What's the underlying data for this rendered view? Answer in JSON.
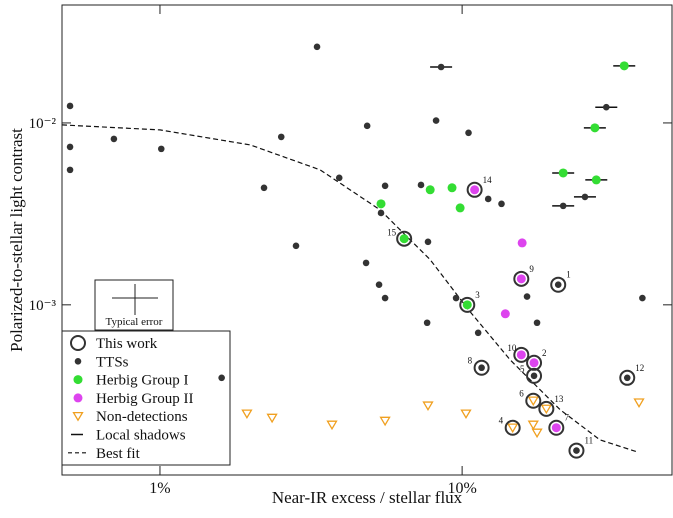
{
  "chart_data": {
    "type": "scatter",
    "xlabel": "Near-IR excess / stellar flux",
    "ylabel": "Polarized-to-stellar light contrast",
    "log_x": true,
    "log_y": true,
    "xlim": [
      0.474,
      49.5
    ],
    "ylim": [
      0.000116,
      0.0445
    ],
    "xticks": [
      {
        "value": 1,
        "label": "1%"
      },
      {
        "value": 10,
        "label": "10%"
      }
    ],
    "yticks": [
      {
        "value": 0.001,
        "label": "10⁻³"
      },
      {
        "value": 0.01,
        "label": "10⁻²"
      }
    ],
    "legend": "lower left",
    "annotation": "Typical error",
    "series": [
      {
        "name": "This work",
        "color": "#333333",
        "marker": "circle",
        "labels": [
          "1",
          "2",
          "3",
          "4",
          "5",
          "6",
          "7",
          "8",
          "9",
          "10",
          "11",
          "12",
          "13",
          "14",
          "15"
        ],
        "x": [
          20.8,
          17.3,
          10.4,
          14.7,
          17.3,
          17.2,
          20.5,
          11.6,
          15.7,
          15.7,
          23.9,
          35.2,
          19.0,
          11.0,
          6.43
        ],
        "y": [
          0.00129,
          0.00048,
          0.001,
          0.000211,
          0.000407,
          0.000297,
          0.000211,
          0.000451,
          0.00139,
          0.000531,
          0.000158,
          0.000397,
          0.000268,
          0.00429,
          0.00231
        ]
      },
      {
        "name": "TTSs",
        "color": "#333333",
        "marker": "dot",
        "x": [
          3.31,
          8.52,
          30.0,
          0.504,
          0.504,
          0.504,
          0.704,
          1.01,
          2.52,
          4.85,
          8.2,
          10.5,
          3.92,
          2.21,
          7.31,
          5.56,
          5.39,
          12.2,
          13.5,
          21.6,
          25.5,
          2.82,
          7.71,
          4.81,
          5.31,
          5.56,
          9.55,
          16.4,
          39.5,
          7.66,
          11.3,
          17.7,
          1.6,
          11.6,
          17.3,
          20.8,
          35.2,
          23.9
        ],
        "y": [
          0.0262,
          0.0203,
          0.0122,
          0.0124,
          0.00738,
          0.00552,
          0.00817,
          0.0072,
          0.00838,
          0.00964,
          0.0103,
          0.00882,
          0.00499,
          0.0044,
          0.00456,
          0.00451,
          0.0032,
          0.00382,
          0.00359,
          0.0035,
          0.00392,
          0.00211,
          0.00222,
          0.0017,
          0.00129,
          0.00109,
          0.00109,
          0.00111,
          0.00109,
          0.000797,
          0.000702,
          0.000797,
          0.000397,
          0.000451,
          0.000407,
          0.00129,
          0.000397,
          0.000158
        ]
      },
      {
        "name": "Herbig Group I",
        "color": "#33dd33",
        "marker": "dot",
        "x": [
          5.39,
          7.84,
          9.26,
          9.85,
          21.6,
          27.5,
          27.8,
          34.4,
          10.4,
          6.43
        ],
        "y": [
          0.00359,
          0.00429,
          0.0044,
          0.00341,
          0.00531,
          0.0094,
          0.00486,
          0.0206,
          0.001,
          0.00231
        ]
      },
      {
        "name": "Herbig Group II",
        "color": "#dd44ee",
        "marker": "dot",
        "x": [
          15.8,
          13.9,
          11.0,
          15.7,
          15.7,
          17.3,
          20.5
        ],
        "y": [
          0.00219,
          0.000893,
          0.00429,
          0.00139,
          0.000531,
          0.00048,
          0.000211
        ]
      },
      {
        "name": "Non-detections",
        "color": "#f0a020",
        "marker": "triangle",
        "x": [
          1.94,
          2.35,
          3.71,
          5.56,
          7.71,
          10.3,
          17.2,
          17.7,
          38.5,
          17.2,
          19.0,
          14.7
        ],
        "y": [
          0.000252,
          0.000239,
          0.000219,
          0.00023,
          0.000279,
          0.000252,
          0.000219,
          0.000198,
          0.00029,
          0.000297,
          0.000268,
          0.000211
        ]
      },
      {
        "name": "Local shadows",
        "color": "#111111",
        "marker": "hline",
        "x": [
          8.52,
          30.0,
          21.6,
          25.5,
          27.5,
          27.8,
          34.4,
          21.6
        ],
        "y": [
          0.0203,
          0.0122,
          0.0035,
          0.00392,
          0.0094,
          0.00486,
          0.0206,
          0.00531
        ]
      },
      {
        "name": "Best fit",
        "color": "#111111",
        "marker": "dashed-line",
        "x": [
          0.474,
          1.0,
          1.99,
          3.39,
          5.35,
          7.84,
          10.5,
          14.4,
          21.1,
          28.6,
          37.7
        ],
        "y": [
          0.00976,
          0.00916,
          0.00757,
          0.00552,
          0.00333,
          0.00177,
          0.000939,
          0.000499,
          0.000265,
          0.000181,
          0.000156
        ]
      }
    ]
  }
}
